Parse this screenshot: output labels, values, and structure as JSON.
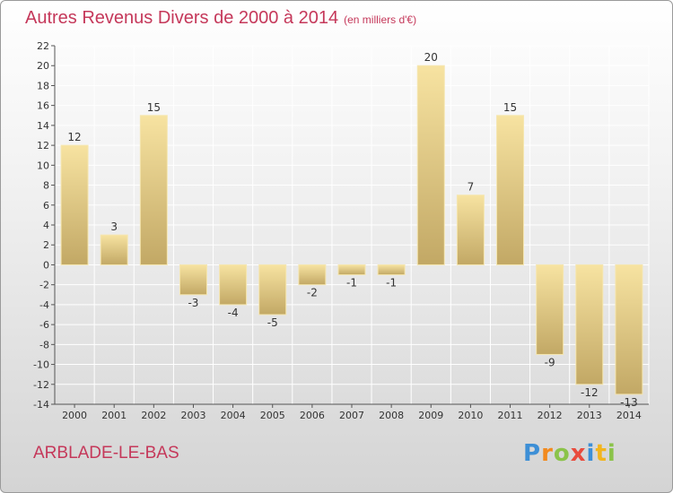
{
  "colors": {
    "title": "#c5385a",
    "bar_light": "#f7e3a1",
    "bar_dark": "#c2a865",
    "axis_text": "#333333",
    "grid": "#ffffff"
  },
  "chart_data": {
    "type": "bar",
    "title": "Autres Revenus Divers de 2000 à 2014",
    "subtitle": "(en milliers d'€)",
    "xlabel": "",
    "ylabel": "",
    "categories": [
      "2000",
      "2001",
      "2002",
      "2003",
      "2004",
      "2005",
      "2006",
      "2007",
      "2008",
      "2009",
      "2010",
      "2011",
      "2012",
      "2013",
      "2014"
    ],
    "values": [
      12,
      3,
      15,
      -3,
      -4,
      -5,
      -2,
      -1,
      -1,
      20,
      7,
      15,
      -9,
      -12,
      -13
    ],
    "ylim": [
      -14,
      22
    ],
    "yticks": [
      -14,
      -12,
      -10,
      -8,
      -6,
      -4,
      -2,
      0,
      2,
      4,
      6,
      8,
      10,
      12,
      14,
      16,
      18,
      20,
      22
    ],
    "grid": true,
    "legend": "none"
  },
  "footer": {
    "commune": "ARBLADE-LE-BAS",
    "brand": [
      "P",
      "r",
      "o",
      "x",
      "i",
      "t",
      "i"
    ],
    "brand_colors": [
      "#3d8fd6",
      "#f28a1e",
      "#8bc34a",
      "#e94b3c",
      "#3d8fd6",
      "#f2b51e",
      "#8bc34a"
    ]
  }
}
